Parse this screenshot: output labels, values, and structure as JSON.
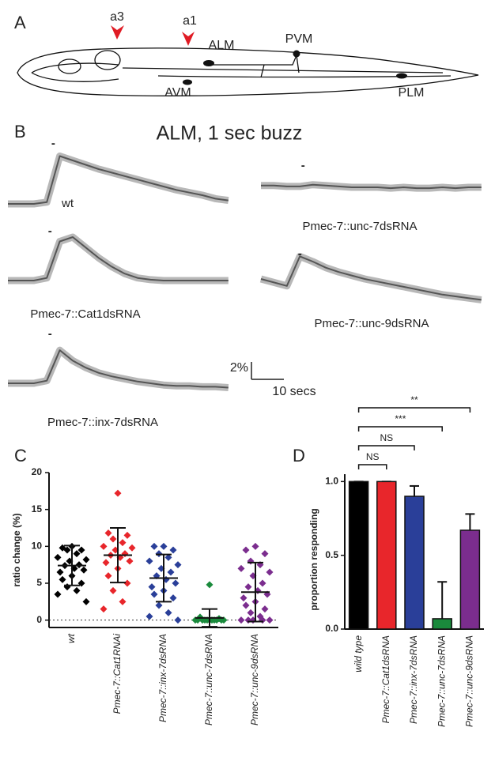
{
  "panel_labels": [
    "A",
    "B",
    "C",
    "D"
  ],
  "diagram": {
    "labels": [
      "a3",
      "a1",
      "ALM",
      "PVM",
      "AVM",
      "PLM"
    ]
  },
  "traces": {
    "title": "ALM, 1 sec buzz",
    "stimulus_label": "-",
    "scale_bar": {
      "y_value": 2,
      "y_label": "2%",
      "x_value": 10,
      "x_label": "10 secs"
    },
    "x": [
      0,
      4,
      8,
      12,
      16,
      20,
      24,
      28,
      32,
      36,
      40,
      44,
      48,
      52,
      56,
      60,
      64,
      68
    ],
    "items": [
      {
        "label": "wt",
        "stimulus_time": 14,
        "values": [
          0,
          0,
          0,
          0.2,
          5.5,
          5.0,
          4.5,
          4.0,
          3.6,
          3.2,
          2.8,
          2.4,
          2.0,
          1.6,
          1.3,
          1.0,
          0.6,
          0.4
        ]
      },
      {
        "label": "Pmec-7::unc-7dsRNA",
        "stimulus_time": 13,
        "values": [
          0.2,
          0.2,
          0.1,
          0.1,
          0.3,
          0.2,
          0.1,
          0,
          0,
          0,
          -0.1,
          0,
          -0.1,
          -0.1,
          0,
          -0.1,
          0,
          0
        ]
      },
      {
        "label": "Pmec-7::Cat1dsRNA",
        "stimulus_time": 13,
        "values": [
          0,
          0,
          0,
          0.3,
          4.5,
          5.0,
          3.8,
          2.6,
          1.6,
          0.8,
          0.3,
          0.1,
          0,
          0,
          0,
          0,
          0,
          0
        ]
      },
      {
        "label": "Pmec-7::unc-9dsRNA",
        "stimulus_time": 12,
        "values": [
          0,
          -0.4,
          -0.8,
          2.6,
          2.0,
          1.3,
          0.8,
          0.4,
          0,
          -0.3,
          -0.6,
          -0.9,
          -1.2,
          -1.5,
          -1.8,
          -2.0,
          -2.2,
          -2.4
        ]
      },
      {
        "label": "Pmec-7::inx-7dsRNA",
        "stimulus_time": 13,
        "values": [
          0,
          0,
          0,
          0.3,
          3.8,
          2.6,
          1.8,
          1.2,
          0.8,
          0.5,
          0.2,
          0,
          -0.2,
          -0.3,
          -0.3,
          -0.4,
          -0.4,
          -0.5
        ]
      }
    ]
  },
  "chart_data": [
    {
      "type": "dot",
      "y_label": "ratio change (%)",
      "categories": [
        "wt",
        "Pmec-7::Cat1RNAi",
        "Pmec-7::inx-7dsRNA",
        "Pmec-7::unc-7dsRNA",
        "Pmec-7::unc-9dsRNA"
      ],
      "ylim": [
        -1,
        20
      ],
      "yticks": [
        0,
        5,
        10,
        15,
        20
      ],
      "reference_line": 0,
      "groups": [
        {
          "color": "#000000",
          "mean": 7.4,
          "sd": 2.7,
          "values": [
            10,
            9.8,
            9.5,
            9.5,
            9,
            8.5,
            8.2,
            8,
            7.5,
            7.4,
            7,
            6.8,
            6.5,
            6,
            5.5,
            5,
            4.5,
            4,
            3.5,
            2.5
          ]
        },
        {
          "color": "#e8262b",
          "mean": 8.8,
          "sd": 3.7,
          "values": [
            17.2,
            11.8,
            11.5,
            11,
            10.5,
            10,
            9.8,
            9.5,
            9,
            8.8,
            8.5,
            8,
            7.8,
            7,
            6,
            5,
            4,
            2.5,
            1.5
          ]
        },
        {
          "color": "#2a3f99",
          "mean": 5.7,
          "sd": 3.2,
          "values": [
            10,
            10,
            9.5,
            9,
            8.5,
            8,
            7.5,
            7,
            6.5,
            6,
            5.5,
            5,
            4.5,
            4,
            3.5,
            3,
            2,
            1,
            0.5,
            0
          ]
        },
        {
          "color": "#1a8a3c",
          "mean": 0.3,
          "sd": 1.2,
          "values": [
            4.8,
            0.4,
            0.2,
            0,
            0,
            0,
            0,
            0,
            0,
            0,
            0,
            0,
            0,
            0
          ]
        },
        {
          "color": "#7b2d8e",
          "mean": 3.8,
          "sd": 4.0,
          "values": [
            10,
            9.5,
            9,
            8,
            7.5,
            7,
            6.5,
            6,
            5,
            4.5,
            4,
            3.5,
            3,
            2.5,
            2,
            1.5,
            1,
            0.5,
            0,
            0,
            0,
            0,
            0
          ]
        }
      ]
    },
    {
      "type": "bar",
      "y_label": "proportion responding",
      "categories": [
        "wild type",
        "Pmec-7::Cat1dsRNA",
        "Pmec-7::inx-7dsRNA",
        "Pmec-7::unc-7dsRNA",
        "Pmec-7::unc-9dsRNA"
      ],
      "values": [
        1,
        1,
        0.9,
        0.07,
        0.67
      ],
      "errors": [
        0,
        0,
        0.07,
        0.25,
        0.11
      ],
      "colors": [
        "#000000",
        "#e8262b",
        "#2a3f99",
        "#1a8a3c",
        "#7b2d8e"
      ],
      "ylim": [
        0,
        1.05
      ],
      "yticks": [
        {
          "value": 0,
          "label": "0.0"
        },
        {
          "value": 0.5,
          "label": "0.5"
        },
        {
          "value": 1,
          "label": "1.0"
        }
      ],
      "comparisons": [
        {
          "label": "NS",
          "pair": [
            0,
            1
          ]
        },
        {
          "label": "NS",
          "pair": [
            0,
            2
          ]
        },
        {
          "label": "***",
          "pair": [
            0,
            3
          ]
        },
        {
          "label": "**",
          "pair": [
            0,
            4
          ]
        }
      ]
    }
  ]
}
